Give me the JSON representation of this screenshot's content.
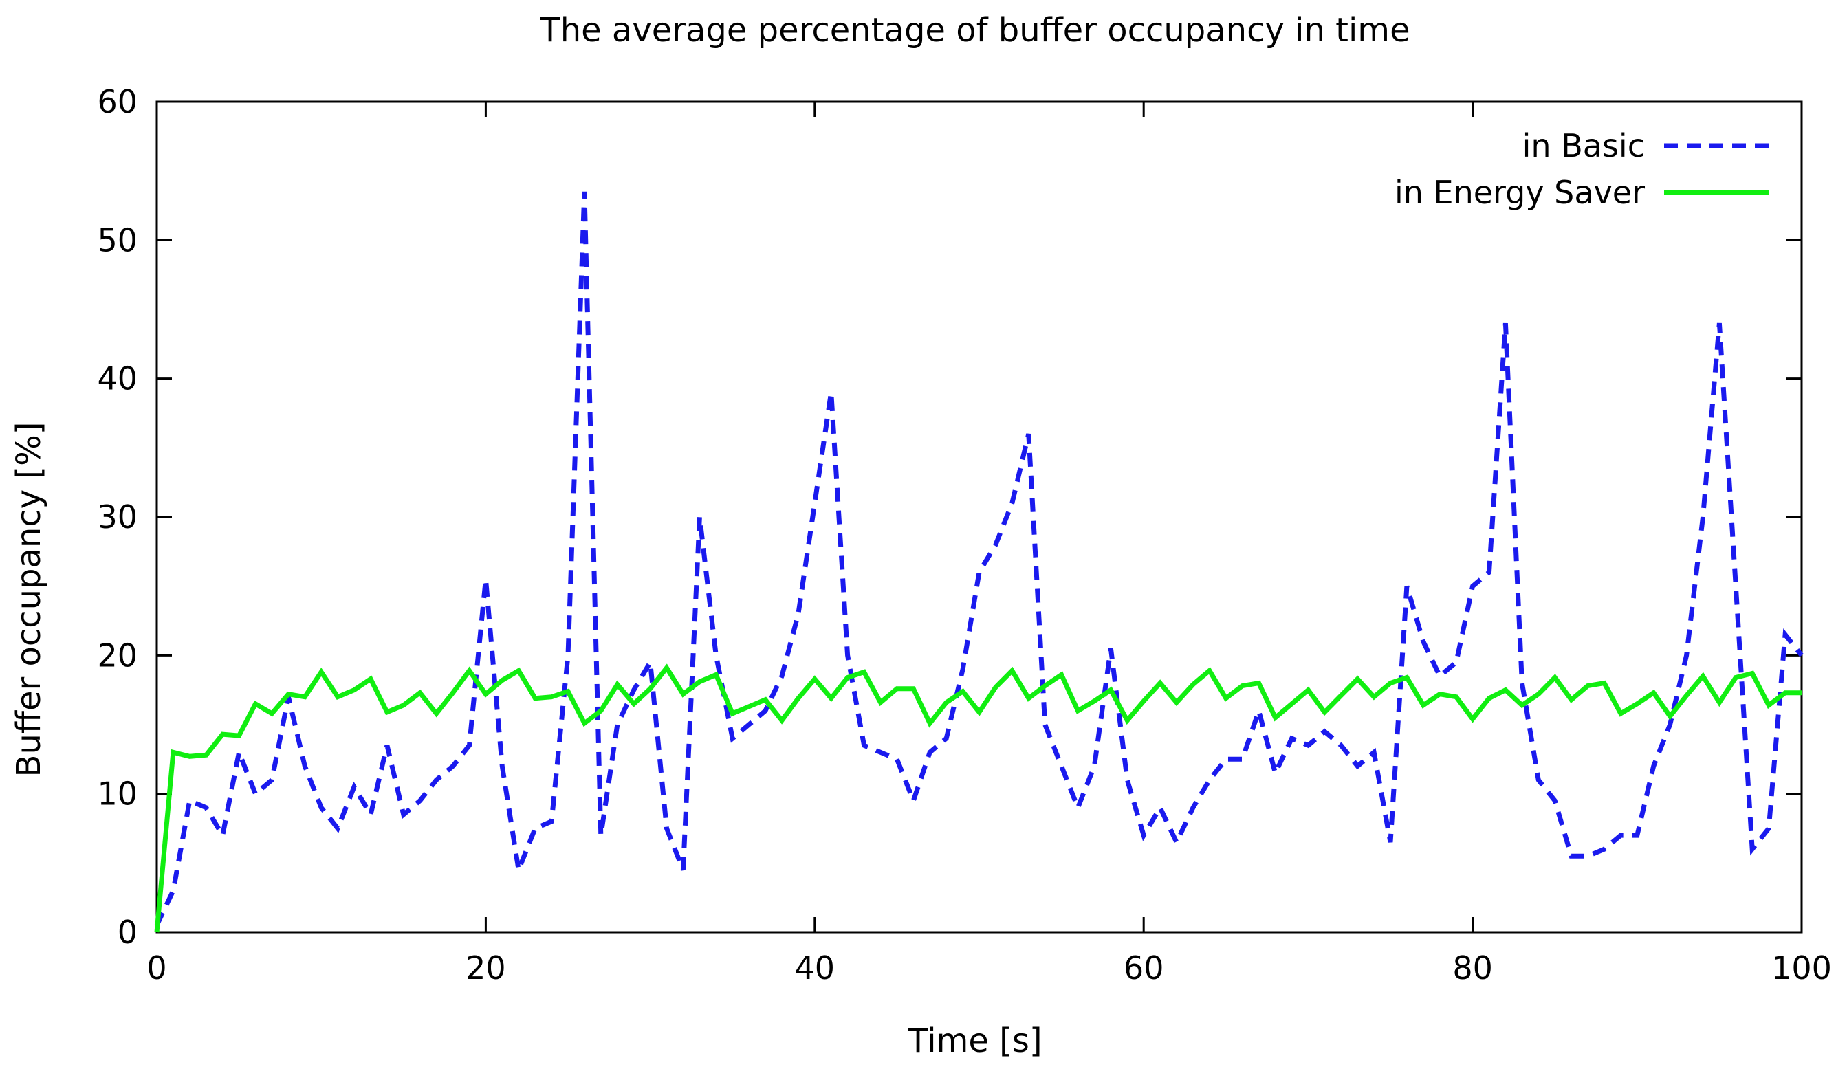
{
  "chart_data": {
    "type": "line",
    "title": "The average percentage of buffer occupancy in time",
    "xlabel": "Time [s]",
    "ylabel": "Buffer occupancy [%]",
    "xlim": [
      0,
      100
    ],
    "ylim": [
      0,
      60
    ],
    "xticks": [
      0,
      20,
      40,
      60,
      80,
      100
    ],
    "yticks": [
      0,
      10,
      20,
      30,
      40,
      50,
      60
    ],
    "grid": false,
    "legend_position": "top-right",
    "series": [
      {
        "name": "in Basic",
        "color": "#1a1aee",
        "style": "dashed",
        "x": [
          0,
          1,
          2,
          3,
          4,
          5,
          6,
          7,
          8,
          9,
          10,
          11,
          12,
          13,
          14,
          15,
          16,
          17,
          18,
          19,
          20,
          21,
          22,
          23,
          24,
          25,
          26,
          27,
          28,
          29,
          30,
          31,
          32,
          33,
          34,
          35,
          36,
          37,
          38,
          39,
          40,
          41,
          42,
          43,
          44,
          45,
          46,
          47,
          48,
          49,
          50,
          51,
          52,
          53,
          54,
          55,
          56,
          57,
          58,
          59,
          60,
          61,
          62,
          63,
          64,
          65,
          66,
          67,
          68,
          69,
          70,
          71,
          72,
          73,
          74,
          75,
          76,
          77,
          78,
          79,
          80,
          81,
          82,
          83,
          84,
          85,
          86,
          87,
          88,
          89,
          90,
          91,
          92,
          93,
          94,
          95,
          96,
          97,
          98,
          99,
          100
        ],
        "y": [
          0.5,
          3,
          9.5,
          9,
          7,
          13,
          10,
          11,
          17,
          12,
          9,
          7.5,
          10.5,
          8.5,
          13.5,
          8.5,
          9.5,
          11,
          12,
          13.5,
          25.5,
          12,
          4.5,
          7.5,
          8,
          20,
          53.5,
          7,
          15,
          17.5,
          19.5,
          7.5,
          4.5,
          30,
          20,
          14,
          15,
          16,
          18.5,
          23,
          31,
          39,
          20,
          13.5,
          13,
          12.5,
          9.5,
          13,
          14,
          19,
          26,
          28,
          31,
          36,
          15,
          12,
          9,
          12,
          20.5,
          11,
          7,
          9,
          6.5,
          9,
          11,
          12.5,
          12.5,
          16,
          11.5,
          14,
          13.5,
          14.5,
          13.5,
          12,
          13,
          6.5,
          25,
          21,
          18.5,
          19.5,
          25,
          26,
          44,
          18,
          11,
          9.5,
          5.5,
          5.5,
          6,
          7,
          7,
          12,
          15,
          20,
          30,
          44,
          25,
          6,
          7.5,
          21.5,
          20
        ]
      },
      {
        "name": "in Energy Saver",
        "color": "#11ee11",
        "style": "solid",
        "x": [
          0,
          1,
          2,
          3,
          4,
          5,
          6,
          7,
          8,
          9,
          10,
          11,
          12,
          13,
          14,
          15,
          16,
          17,
          18,
          19,
          20,
          21,
          22,
          23,
          24,
          25,
          26,
          27,
          28,
          29,
          30,
          31,
          32,
          33,
          34,
          35,
          36,
          37,
          38,
          39,
          40,
          41,
          42,
          43,
          44,
          45,
          46,
          47,
          48,
          49,
          50,
          51,
          52,
          53,
          54,
          55,
          56,
          57,
          58,
          59,
          60,
          61,
          62,
          63,
          64,
          65,
          66,
          67,
          68,
          69,
          70,
          71,
          72,
          73,
          74,
          75,
          76,
          77,
          78,
          79,
          80,
          81,
          82,
          83,
          84,
          85,
          86,
          87,
          88,
          89,
          90,
          91,
          92,
          93,
          94,
          95,
          96,
          97,
          98,
          99,
          100
        ],
        "y": [
          0,
          13,
          12.7,
          12.8,
          14.3,
          14.2,
          16.5,
          15.8,
          17.2,
          17,
          18.8,
          17,
          17.5,
          18.3,
          15.9,
          16.4,
          17.3,
          15.8,
          17.3,
          18.9,
          17.2,
          18.2,
          18.9,
          16.9,
          17,
          17.4,
          15.1,
          16,
          17.9,
          16.5,
          17.6,
          19.1,
          17.2,
          18.1,
          18.6,
          15.8,
          16.3,
          16.8,
          15.3,
          16.9,
          18.3,
          16.9,
          18.4,
          18.8,
          16.6,
          17.6,
          17.6,
          15.1,
          16.6,
          17.4,
          15.9,
          17.7,
          18.9,
          16.9,
          17.8,
          18.6,
          16,
          16.7,
          17.5,
          15.3,
          16.7,
          18,
          16.6,
          17.9,
          18.9,
          16.9,
          17.8,
          18,
          15.5,
          16.5,
          17.5,
          15.9,
          17.1,
          18.3,
          17,
          18,
          18.4,
          16.4,
          17.2,
          17,
          15.4,
          16.9,
          17.5,
          16.4,
          17.2,
          18.4,
          16.8,
          17.8,
          18,
          15.8,
          16.5,
          17.3,
          15.6,
          17.1,
          18.5,
          16.6,
          18.4,
          18.7,
          16.4,
          17.3,
          17.3
        ]
      }
    ]
  }
}
